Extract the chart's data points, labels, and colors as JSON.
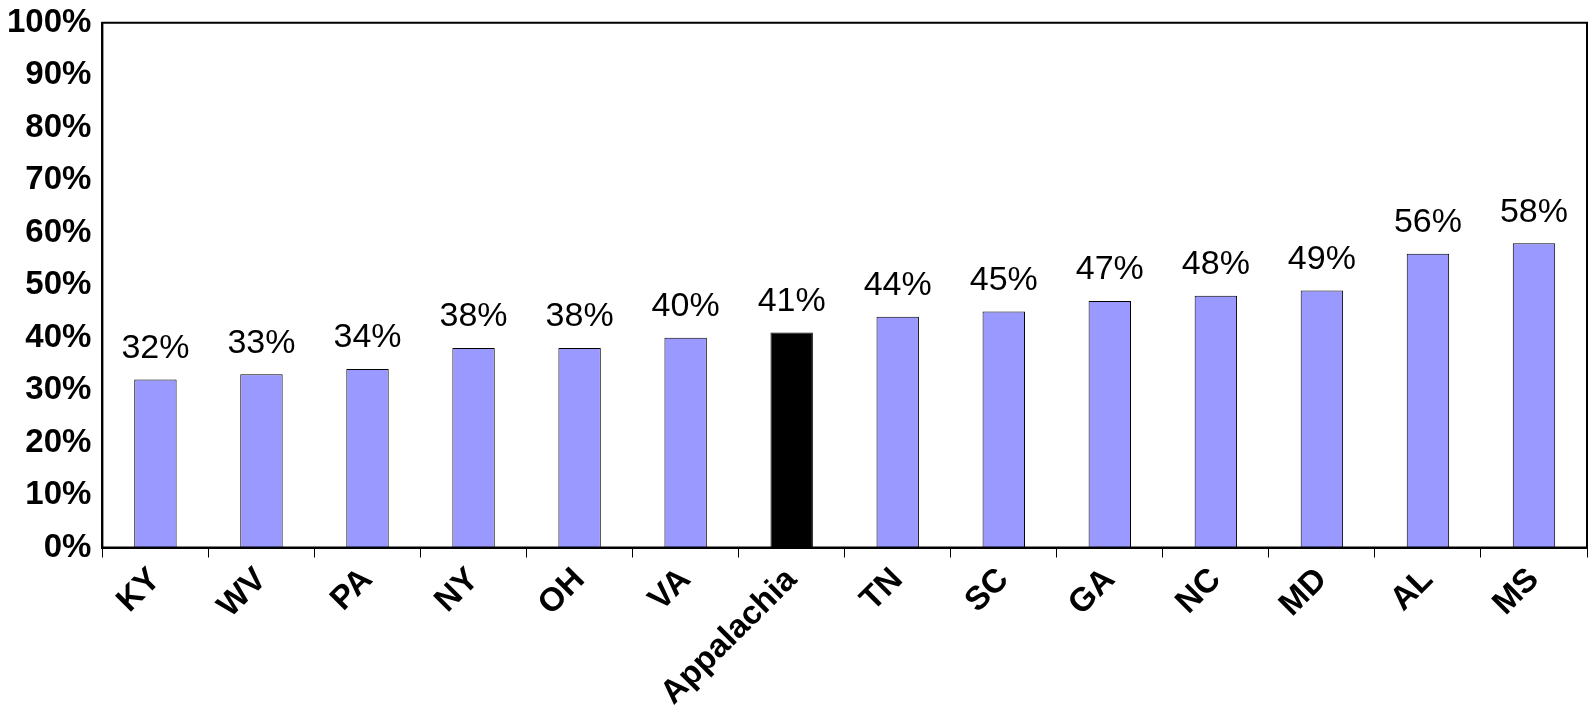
{
  "chart_data": {
    "type": "bar",
    "categories": [
      "KY",
      "WV",
      "PA",
      "NY",
      "OH",
      "VA",
      "Appalachia",
      "TN",
      "SC",
      "GA",
      "NC",
      "MD",
      "AL",
      "MS"
    ],
    "values": [
      32,
      33,
      34,
      38,
      38,
      40,
      41,
      44,
      45,
      47,
      48,
      49,
      56,
      58
    ],
    "colors": [
      "#9999ff",
      "#9999ff",
      "#9999ff",
      "#9999ff",
      "#9999ff",
      "#9999ff",
      "#000000",
      "#9999ff",
      "#9999ff",
      "#9999ff",
      "#9999ff",
      "#9999ff",
      "#9999ff",
      "#9999ff"
    ],
    "value_labels": [
      "32%",
      "33%",
      "34%",
      "38%",
      "38%",
      "40%",
      "41%",
      "44%",
      "45%",
      "47%",
      "48%",
      "49%",
      "56%",
      "58%"
    ],
    "ylim": [
      0,
      100
    ],
    "yticks": [
      {
        "value": 0,
        "label": "0%"
      },
      {
        "value": 10,
        "label": "10%"
      },
      {
        "value": 20,
        "label": "20%"
      },
      {
        "value": 30,
        "label": "30%"
      },
      {
        "value": 40,
        "label": "40%"
      },
      {
        "value": 50,
        "label": "50%"
      },
      {
        "value": 60,
        "label": "60%"
      },
      {
        "value": 70,
        "label": "70%"
      },
      {
        "value": 80,
        "label": "80%"
      },
      {
        "value": 90,
        "label": "90%"
      },
      {
        "value": 100,
        "label": "100%"
      }
    ],
    "grid": false,
    "legend": false
  }
}
